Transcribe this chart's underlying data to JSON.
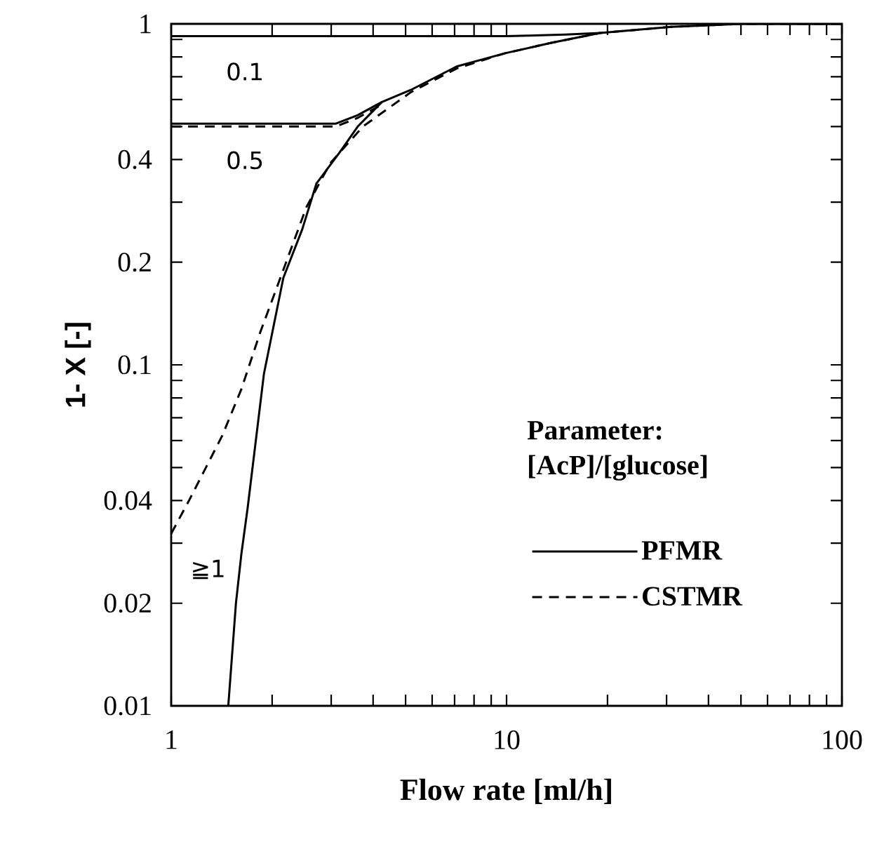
{
  "chart_data": {
    "type": "line",
    "xlabel": "Flow rate [ml/h]",
    "ylabel": "1- X [-]",
    "legend_title": "Parameter: [AcP]/[glucose]",
    "log": "xy",
    "legend": "bottom right",
    "xlim": [
      1,
      100
    ],
    "ylim": [
      0.01,
      1
    ],
    "xticks": [
      1,
      {
        "value": 2,
        "label": null
      },
      {
        "value": 3,
        "label": null
      },
      {
        "value": 4,
        "label": null
      },
      {
        "value": 5,
        "label": null
      },
      {
        "value": 6,
        "label": null
      },
      {
        "value": 7,
        "label": null
      },
      {
        "value": 8,
        "label": null
      },
      {
        "value": 9,
        "label": null
      },
      10,
      {
        "value": 20,
        "label": null
      },
      {
        "value": 30,
        "label": null
      },
      {
        "value": 40,
        "label": null
      },
      {
        "value": 50,
        "label": null
      },
      {
        "value": 60,
        "label": null
      },
      {
        "value": 70,
        "label": null
      },
      {
        "value": 80,
        "label": null
      },
      {
        "value": 90,
        "label": null
      },
      100
    ],
    "yticks": [
      0.01,
      0.02,
      {
        "value": 0.03,
        "label": null
      },
      0.04,
      {
        "value": 0.05,
        "label": null
      },
      {
        "value": 0.06,
        "label": null
      },
      {
        "value": 0.07,
        "label": null
      },
      {
        "value": 0.08,
        "label": null
      },
      {
        "value": 0.09,
        "label": null
      },
      0.1,
      0.2,
      {
        "value": 0.3,
        "label": null
      },
      0.4,
      {
        "value": 0.5,
        "label": null
      },
      {
        "value": 0.6,
        "label": null
      },
      {
        "value": 0.7,
        "label": null
      },
      {
        "value": 0.8,
        "label": null
      },
      {
        "value": 0.9,
        "label": null
      },
      1
    ],
    "series": [
      {
        "name": "PFMR",
        "color": "#000000",
        "line_style": "solid",
        "x": [
          1.48,
          1.56,
          1.62,
          1.69,
          1.89,
          2.16,
          2.46,
          2.71,
          3.18,
          3.6,
          4.25,
          5.18,
          7.1,
          9.9,
          13.6,
          19,
          31,
          50,
          100
        ],
        "values": [
          0.01,
          0.02,
          0.028,
          0.038,
          0.094,
          0.18,
          0.25,
          0.34,
          0.42,
          0.5,
          0.59,
          0.64,
          0.75,
          0.82,
          0.88,
          0.94,
          0.98,
          1.0,
          1.0
        ]
      },
      {
        "name": "CSTMR",
        "color": "#000000",
        "line_style": "dashed",
        "x": [
          1,
          1.13,
          1.42,
          1.62,
          1.84,
          2.16,
          2.53,
          2.98,
          3.73,
          5.18,
          7.1,
          9.9,
          13.6,
          19,
          31,
          50,
          100
        ],
        "values": [
          0.032,
          0.04,
          0.062,
          0.085,
          0.124,
          0.19,
          0.29,
          0.39,
          0.5,
          0.63,
          0.74,
          0.82,
          0.88,
          0.94,
          0.98,
          1.0,
          1.0
        ]
      },
      {
        "color": "#000000",
        "line_style": "solid",
        "x": [
          1,
          2,
          3.1,
          3.6,
          4.25
        ],
        "values": [
          0.51,
          0.51,
          0.51,
          0.54,
          0.59
        ]
      },
      {
        "color": "#000000",
        "line_style": "dashed",
        "x": [
          1,
          2,
          3.1,
          3.6,
          4.25
        ],
        "values": [
          0.5,
          0.5,
          0.5,
          0.53,
          0.58
        ]
      },
      {
        "color": "#000000",
        "line_style": "solid",
        "x": [
          1,
          5,
          10,
          15,
          19
        ],
        "values": [
          0.92,
          0.92,
          0.92,
          0.93,
          0.94
        ]
      }
    ],
    "annotations": [
      "0.1",
      "0.5",
      "≧1"
    ]
  }
}
